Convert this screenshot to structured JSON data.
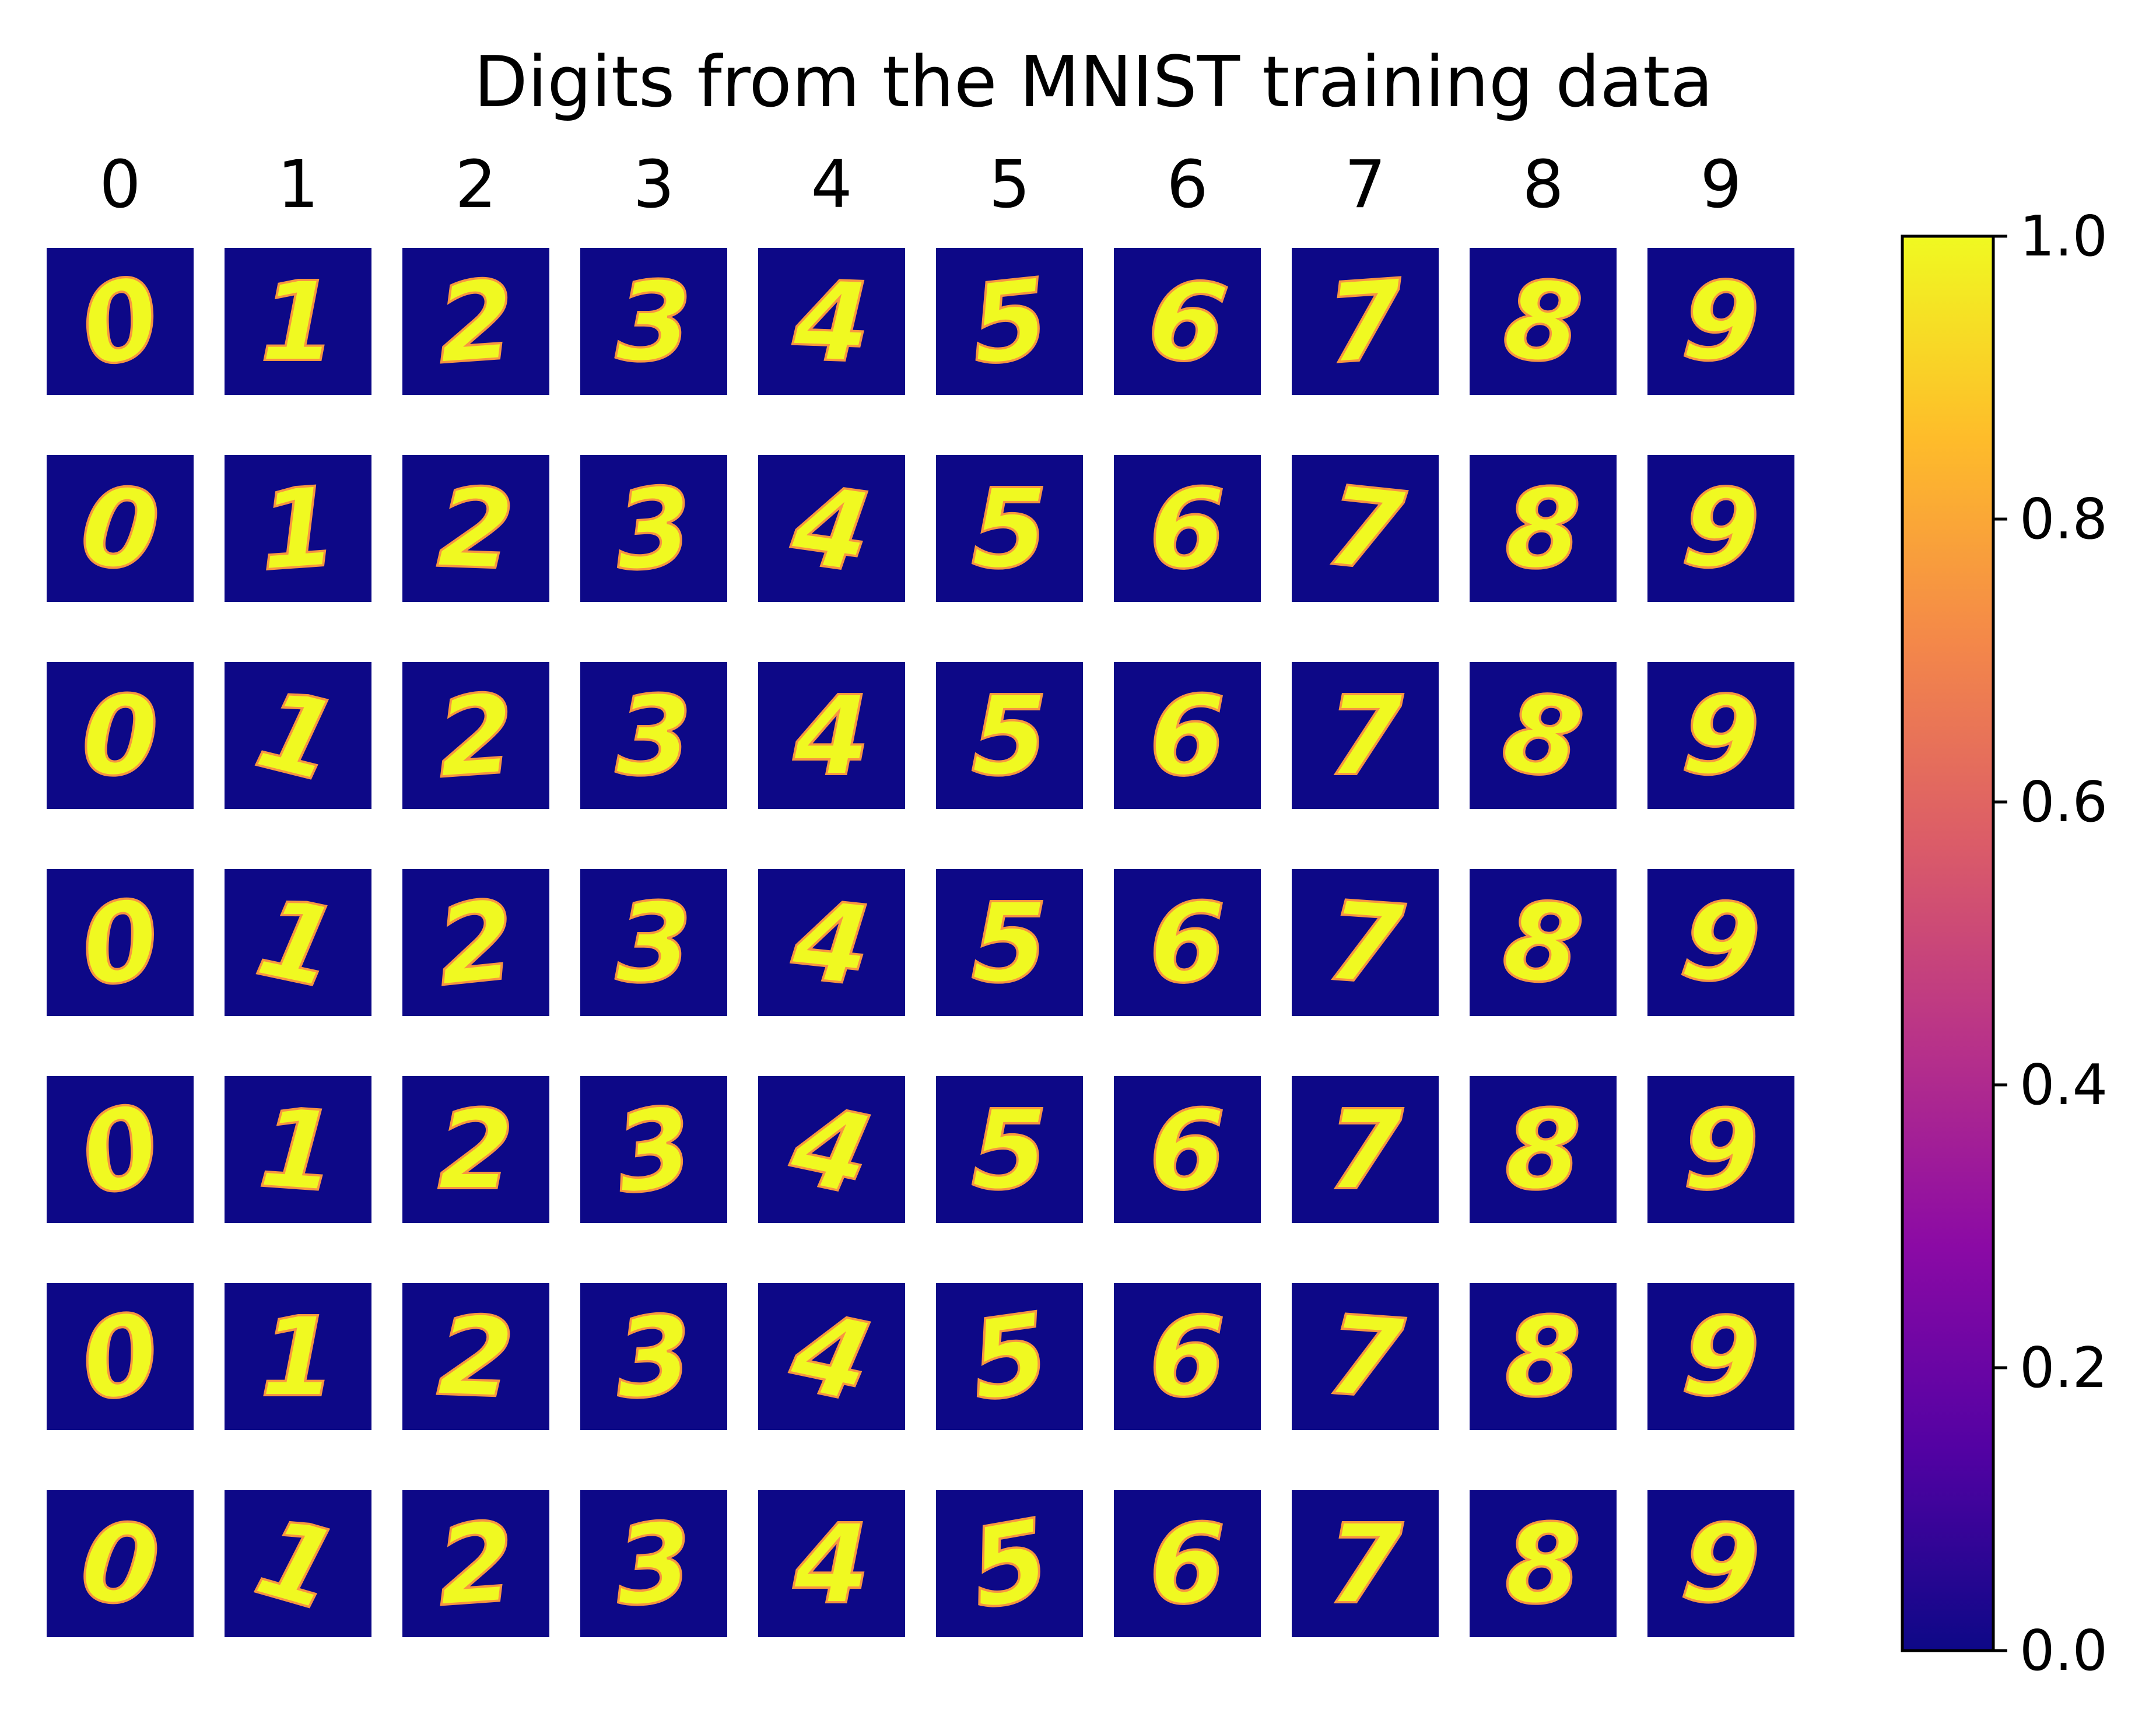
{
  "title": "Digits from the MNIST training data",
  "column_labels": [
    "0",
    "1",
    "2",
    "3",
    "4",
    "5",
    "6",
    "7",
    "8",
    "9"
  ],
  "rows": 7,
  "grid": [
    [
      "0",
      "1",
      "2",
      "3",
      "4",
      "5",
      "6",
      "7",
      "8",
      "9"
    ],
    [
      "0",
      "1",
      "2",
      "3",
      "4",
      "5",
      "6",
      "7",
      "8",
      "9"
    ],
    [
      "0",
      "1",
      "2",
      "3",
      "4",
      "5",
      "6",
      "7",
      "8",
      "9"
    ],
    [
      "0",
      "1",
      "2",
      "3",
      "4",
      "5",
      "6",
      "7",
      "8",
      "9"
    ],
    [
      "0",
      "1",
      "2",
      "3",
      "4",
      "5",
      "6",
      "7",
      "8",
      "9"
    ],
    [
      "0",
      "1",
      "2",
      "3",
      "4",
      "5",
      "6",
      "7",
      "8",
      "9"
    ],
    [
      "0",
      "1",
      "2",
      "3",
      "4",
      "5",
      "6",
      "7",
      "8",
      "9"
    ]
  ],
  "colormap": {
    "name": "plasma",
    "background_color": "#0d0887",
    "digit_color": "#f0f921",
    "stops": [
      "#0d0887",
      "#5302a3",
      "#8b0aa5",
      "#b83289",
      "#db5c68",
      "#f48849",
      "#febc2a",
      "#f0f921"
    ]
  },
  "colorbar": {
    "range": [
      0.0,
      1.0
    ],
    "ticks": [
      "0.0",
      "0.2",
      "0.4",
      "0.6",
      "0.8",
      "1.0"
    ]
  }
}
